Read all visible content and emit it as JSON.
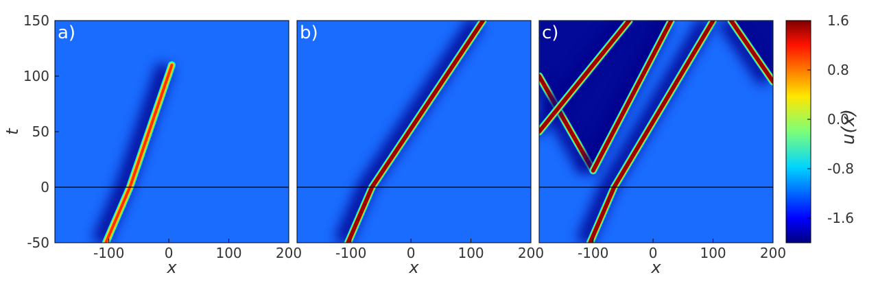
{
  "chart_data": {
    "type": "heatmap",
    "panels": [
      {
        "label": "a)",
        "xlabel": "x",
        "ylabel": "t",
        "xlim": [
          -190,
          200
        ],
        "ylim": [
          -50,
          150
        ],
        "xticks": [
          -100,
          0,
          100,
          200
        ],
        "xtick_labels": [
          "-100",
          "0",
          "100",
          "200"
        ],
        "yticks": [
          -50,
          0,
          50,
          100,
          150
        ],
        "ytick_labels": [
          "-50",
          "0",
          "50",
          "100",
          "150"
        ],
        "reference_line_t": 0,
        "solitons": [
          {
            "kind": "kink",
            "t_range": [
              -50,
              110
            ],
            "path": [
              [
                -105,
                -50
              ],
              [
                -65,
                0
              ],
              [
                5,
                110
              ]
            ],
            "note": "ends at t≈110"
          }
        ]
      },
      {
        "label": "b)",
        "xlabel": "x",
        "xlim": [
          -190,
          200
        ],
        "ylim": [
          -50,
          150
        ],
        "xticks": [
          -100,
          0,
          100,
          200
        ],
        "xtick_labels": [
          "-100",
          "0",
          "100",
          "200"
        ],
        "reference_line_t": 0,
        "solitons": [
          {
            "kind": "kink",
            "t_range": [
              -50,
              150
            ],
            "path": [
              [
                -105,
                -50
              ],
              [
                -65,
                0
              ],
              [
                120,
                150
              ]
            ]
          }
        ]
      },
      {
        "label": "c)",
        "xlabel": "x",
        "xlim": [
          -190,
          200
        ],
        "ylim": [
          -50,
          150
        ],
        "xticks": [
          -100,
          0,
          100,
          200
        ],
        "xtick_labels": [
          "-100",
          "0",
          "100",
          "200"
        ],
        "reference_line_t": 0,
        "solitons": [
          {
            "kind": "kink",
            "path": [
              [
                -105,
                -50
              ],
              [
                -65,
                0
              ],
              [
                100,
                150
              ]
            ]
          },
          {
            "kind": "kink",
            "path": [
              [
                -100,
                15
              ],
              [
                -190,
                100
              ]
            ]
          },
          {
            "kind": "kink",
            "path": [
              [
                -100,
                15
              ],
              [
                30,
                150
              ]
            ]
          },
          {
            "kind": "kink",
            "path": [
              [
                -40,
                150
              ],
              [
                -190,
                50
              ]
            ]
          },
          {
            "kind": "kink",
            "path": [
              [
                130,
                150
              ],
              [
                200,
                95
              ]
            ]
          }
        ]
      }
    ],
    "colorbar": {
      "label": "u(x)",
      "range": [
        -2.0,
        1.6
      ],
      "ticks": [
        1.6,
        0.8,
        0.0,
        -0.8,
        -1.6
      ],
      "tick_labels": [
        "1.6",
        "0.8",
        "0.0",
        "-0.8",
        "-1.6"
      ],
      "colormap": "jet",
      "background_value": -1.3
    }
  }
}
